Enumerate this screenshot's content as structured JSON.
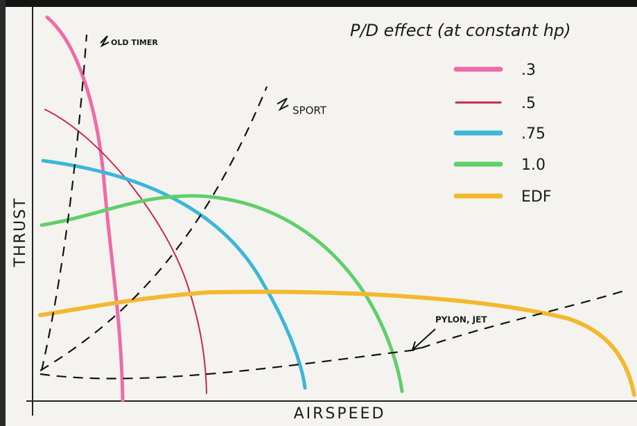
{
  "title": "P/D effect (at constant hp)",
  "axes": {
    "y_label": "THRUST",
    "x_label": "AIRSPEED"
  },
  "legend": [
    {
      "label": ".3",
      "color": "#f06aa8"
    },
    {
      "label": ".5",
      "color": "#c8284a"
    },
    {
      "label": ".75",
      "color": "#3bb7d8"
    },
    {
      "label": "1.0",
      "color": "#5fcf6a"
    },
    {
      "label": "EDF",
      "color": "#f2b92e"
    }
  ],
  "annotations": [
    "OLD TIMER",
    "SPORT",
    "PYLON, JET"
  ]
}
